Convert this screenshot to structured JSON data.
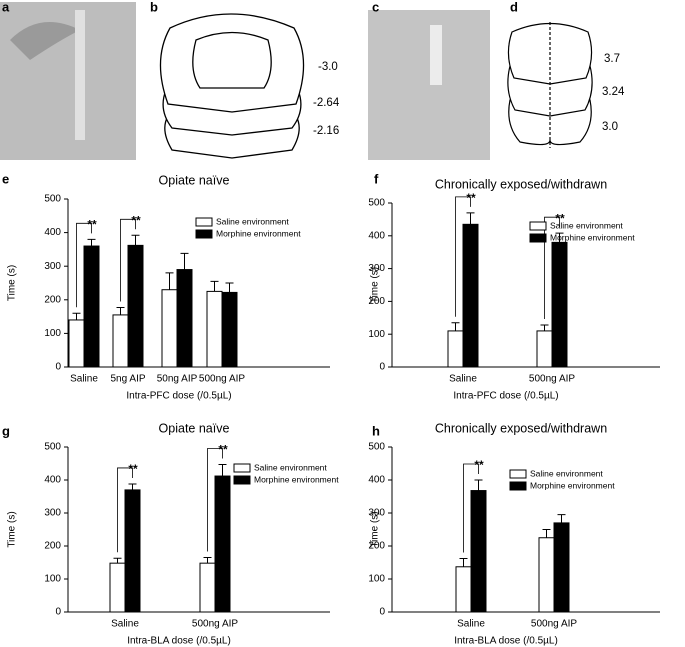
{
  "images": [
    {
      "label": "a"
    },
    {
      "label": "b",
      "levels": [
        "-3.0",
        "-2.64",
        "-2.16"
      ]
    },
    {
      "label": "c"
    },
    {
      "label": "d",
      "levels": [
        "3.7",
        "3.24",
        "3.0"
      ]
    }
  ],
  "chart_data": [
    {
      "label": "e",
      "type": "bar",
      "title": "Opiate naïve",
      "ylabel": "Time (s)",
      "xlabel": "Intra-PFC dose (/0.5µL)",
      "categories": [
        "Saline",
        "5ng AIP",
        "50ng AIP",
        "500ng AIP"
      ],
      "series": [
        {
          "name": "Saline environment",
          "color": "#ffffff",
          "values": [
            140,
            155,
            230,
            225
          ],
          "errors": [
            20,
            22,
            50,
            30
          ]
        },
        {
          "name": "Morphine environment",
          "color": "#000000",
          "values": [
            360,
            362,
            290,
            222
          ],
          "errors": [
            20,
            30,
            48,
            28
          ]
        }
      ],
      "annotations": [
        {
          "text": "**",
          "category": "Saline"
        },
        {
          "text": "**",
          "category": "5ng AIP"
        }
      ],
      "ylim": [
        0,
        500
      ],
      "yticks": [
        0,
        100,
        200,
        300,
        400,
        500
      ]
    },
    {
      "label": "f",
      "type": "bar",
      "title": "Chronically exposed/withdrawn",
      "ylabel": "Time (s)",
      "xlabel": "Intra-PFC dose (/0.5µL)",
      "categories": [
        "Saline",
        "500ng AIP"
      ],
      "series": [
        {
          "name": "Saline environment",
          "color": "#ffffff",
          "values": [
            110,
            110
          ],
          "errors": [
            25,
            18
          ]
        },
        {
          "name": "Morphine environment",
          "color": "#000000",
          "values": [
            435,
            380
          ],
          "errors": [
            35,
            28
          ]
        }
      ],
      "annotations": [
        {
          "text": "**",
          "category": "Saline"
        },
        {
          "text": "**",
          "category": "500ng AIP"
        }
      ],
      "ylim": [
        0,
        500
      ],
      "yticks": [
        0,
        100,
        200,
        300,
        400,
        500
      ]
    },
    {
      "label": "g",
      "type": "bar",
      "title": "Opiate naïve",
      "ylabel": "Time (s)",
      "xlabel": "Intra-BLA dose (/0.5µL)",
      "categories": [
        "Saline",
        "500ng AIP"
      ],
      "series": [
        {
          "name": "Saline environment",
          "color": "#ffffff",
          "values": [
            148,
            148
          ],
          "errors": [
            15,
            17
          ]
        },
        {
          "name": "Morphine environment",
          "color": "#000000",
          "values": [
            370,
            412
          ],
          "errors": [
            18,
            35
          ]
        }
      ],
      "annotations": [
        {
          "text": "**",
          "category": "Saline"
        },
        {
          "text": "**",
          "category": "500ng AIP"
        }
      ],
      "ylim": [
        0,
        500
      ],
      "yticks": [
        0,
        100,
        200,
        300,
        400,
        500
      ]
    },
    {
      "label": "h",
      "type": "bar",
      "title": "Chronically exposed/withdrawn",
      "ylabel": "Time (s)",
      "xlabel": "Intra-BLA dose (/0.5µL)",
      "categories": [
        "Saline",
        "500ng AIP"
      ],
      "series": [
        {
          "name": "Saline environment",
          "color": "#ffffff",
          "values": [
            137,
            225
          ],
          "errors": [
            25,
            25
          ]
        },
        {
          "name": "Morphine environment",
          "color": "#000000",
          "values": [
            368,
            270
          ],
          "errors": [
            32,
            25
          ]
        }
      ],
      "annotations": [
        {
          "text": "**",
          "category": "Saline"
        }
      ],
      "ylim": [
        0,
        500
      ],
      "yticks": [
        0,
        100,
        200,
        300,
        400,
        500
      ]
    }
  ]
}
